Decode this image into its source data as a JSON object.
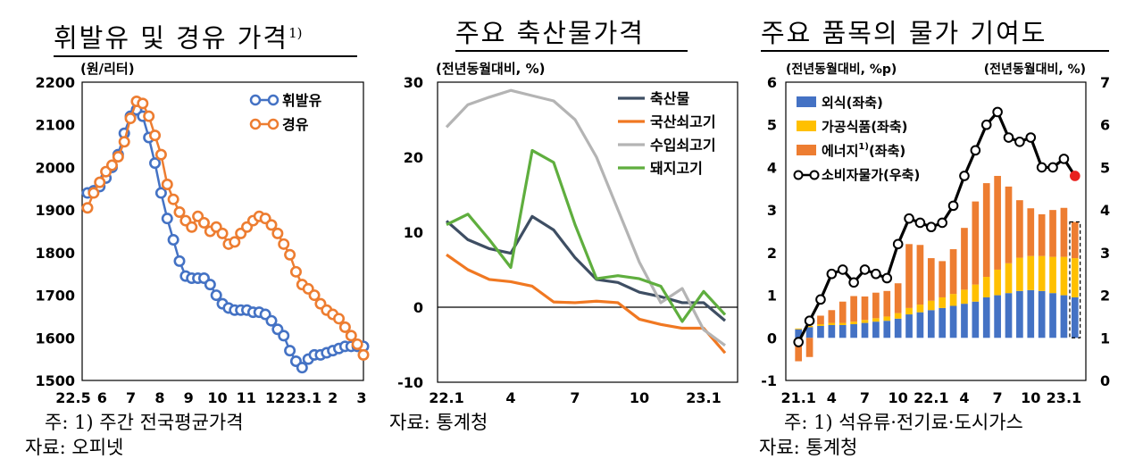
{
  "chart_data": [
    {
      "type": "line",
      "title": "휘발유 및 경유 가격",
      "title_sup": "1)",
      "unit": "(원/리터)",
      "ylim": [
        1500,
        2200
      ],
      "yticks": [
        "2200",
        "2100",
        "2000",
        "1900",
        "1800",
        "1700",
        "1600",
        "1500"
      ],
      "xticks": [
        "22.5",
        "6",
        "7",
        "8",
        "9",
        "10",
        "11",
        "12",
        "23.1",
        "2",
        "3"
      ],
      "x_unit": "week",
      "series": [
        {
          "name": "휘발유",
          "color": "#4472C4",
          "values": [
            1940,
            1945,
            1955,
            1975,
            2000,
            2030,
            2080,
            2120,
            2135,
            2120,
            2070,
            2010,
            1940,
            1880,
            1830,
            1780,
            1745,
            1740,
            1740,
            1740,
            1725,
            1700,
            1680,
            1670,
            1665,
            1665,
            1665,
            1660,
            1660,
            1655,
            1640,
            1620,
            1605,
            1570,
            1545,
            1530,
            1550,
            1560,
            1560,
            1565,
            1570,
            1575,
            1580,
            1580,
            1580,
            1580
          ]
        },
        {
          "name": "경유",
          "color": "#ED7D31",
          "values": [
            1905,
            1940,
            1965,
            1990,
            2005,
            2025,
            2060,
            2115,
            2155,
            2150,
            2120,
            2075,
            2030,
            1960,
            1925,
            1895,
            1875,
            1860,
            1885,
            1870,
            1850,
            1860,
            1845,
            1820,
            1825,
            1845,
            1860,
            1875,
            1885,
            1880,
            1865,
            1845,
            1820,
            1795,
            1755,
            1725,
            1715,
            1700,
            1680,
            1665,
            1655,
            1645,
            1625,
            1605,
            1585,
            1560
          ]
        }
      ]
    },
    {
      "type": "line",
      "title": "주요 축산물가격",
      "unit": "(전년동월대비, %)",
      "ylim": [
        -10,
        30
      ],
      "yticks": [
        "30",
        "20",
        "10",
        "0",
        "-10"
      ],
      "xticks": [
        "22.1",
        "4",
        "7",
        "10",
        "23.1"
      ],
      "x": [
        "22.1",
        "22.2",
        "22.3",
        "22.4",
        "22.5",
        "22.6",
        "22.7",
        "22.8",
        "22.9",
        "22.10",
        "22.11",
        "22.12",
        "23.1",
        "23.2"
      ],
      "series": [
        {
          "name": "축산물",
          "color": "#3E4E63",
          "values": [
            11.5,
            9.0,
            7.8,
            7.2,
            12.1,
            10.3,
            6.6,
            3.7,
            3.3,
            2.0,
            1.4,
            0.6,
            0.6,
            -1.8
          ]
        },
        {
          "name": "국산쇠고기",
          "color": "#F07822",
          "values": [
            7.0,
            5.0,
            3.7,
            3.4,
            2.8,
            0.7,
            0.6,
            0.8,
            0.6,
            -1.6,
            -2.3,
            -2.8,
            -2.8,
            -6.1
          ]
        },
        {
          "name": "수입쇠고기",
          "color": "#B4B4B4",
          "values": [
            24.0,
            27.0,
            28.0,
            28.9,
            28.2,
            27.5,
            25.0,
            20.0,
            13.0,
            6.0,
            0.6,
            2.5,
            -3.0,
            -5.1
          ]
        },
        {
          "name": "돼지고기",
          "color": "#5FAE3E",
          "values": [
            11.0,
            12.4,
            9.0,
            5.3,
            20.9,
            19.3,
            11.0,
            3.8,
            4.2,
            3.8,
            2.8,
            -1.9,
            2.1,
            -1.0
          ]
        }
      ]
    },
    {
      "type": "bar",
      "stacked": true,
      "title": "주요 품목의 물가 기여도",
      "unit_left": "(전년동월대비, %p)",
      "unit_right": "(전년동월대비, %)",
      "ylim": [
        -1,
        6
      ],
      "ylim_right": [
        0,
        7
      ],
      "yticks": [
        "6",
        "5",
        "4",
        "3",
        "2",
        "1",
        "0",
        "-1"
      ],
      "yticks_right": [
        "7",
        "6",
        "5",
        "4",
        "3",
        "2",
        "1",
        "0"
      ],
      "xticks": [
        "21.1",
        "4",
        "7",
        "10",
        "22.1",
        "4",
        "7",
        "10",
        "23.1"
      ],
      "categories": [
        "21.1",
        "21.2",
        "21.3",
        "21.4",
        "21.5",
        "21.6",
        "21.7",
        "21.8",
        "21.9",
        "21.10",
        "21.11",
        "21.12",
        "22.1",
        "22.2",
        "22.3",
        "22.4",
        "22.5",
        "22.6",
        "22.7",
        "22.8",
        "22.9",
        "22.10",
        "22.11",
        "22.12",
        "23.1",
        "23.2"
      ],
      "series": [
        {
          "name": "외식(좌축)",
          "color": "#4472C4",
          "axis": "left",
          "values": [
            0.2,
            0.25,
            0.28,
            0.3,
            0.3,
            0.32,
            0.35,
            0.38,
            0.4,
            0.45,
            0.55,
            0.6,
            0.65,
            0.7,
            0.75,
            0.8,
            0.85,
            0.95,
            1.0,
            1.05,
            1.1,
            1.12,
            1.1,
            1.05,
            1.0,
            0.95
          ]
        },
        {
          "name": "가공식품(좌축)",
          "color": "#FFC000",
          "axis": "left",
          "values": [
            0.02,
            0.03,
            0.04,
            0.05,
            0.05,
            0.06,
            0.07,
            0.08,
            0.1,
            0.13,
            0.15,
            0.18,
            0.22,
            0.25,
            0.28,
            0.33,
            0.4,
            0.48,
            0.6,
            0.7,
            0.78,
            0.8,
            0.82,
            0.85,
            0.9,
            0.92
          ]
        },
        {
          "name": "에너지(좌축)",
          "note_sup": "1)",
          "color": "#ED7D31",
          "axis": "left",
          "values": [
            -0.55,
            -0.45,
            0.2,
            0.3,
            0.5,
            0.6,
            0.55,
            0.6,
            0.6,
            0.7,
            1.5,
            1.4,
            1.0,
            0.85,
            1.05,
            1.45,
            1.95,
            2.2,
            2.2,
            1.8,
            1.35,
            1.12,
            0.98,
            1.1,
            1.15,
            0.85
          ]
        },
        {
          "name": "소비자물가(우축)",
          "color": "#000000",
          "axis": "right",
          "kind": "line",
          "values": [
            0.9,
            1.4,
            1.9,
            2.5,
            2.6,
            2.3,
            2.6,
            2.5,
            2.4,
            3.2,
            3.8,
            3.7,
            3.6,
            3.7,
            4.1,
            4.8,
            5.4,
            6.0,
            6.3,
            5.7,
            5.6,
            5.7,
            5.0,
            5.0,
            5.2,
            4.8
          ]
        }
      ]
    }
  ],
  "notes": {
    "p1_note": "주: 1) 주간 전국평균가격",
    "p1_source": "자료: 오피넷",
    "p2_source": "자료: 통계청",
    "p3_note": "주: 1) 석유류·전기료·도시가스",
    "p3_source": "자료: 통계청"
  }
}
